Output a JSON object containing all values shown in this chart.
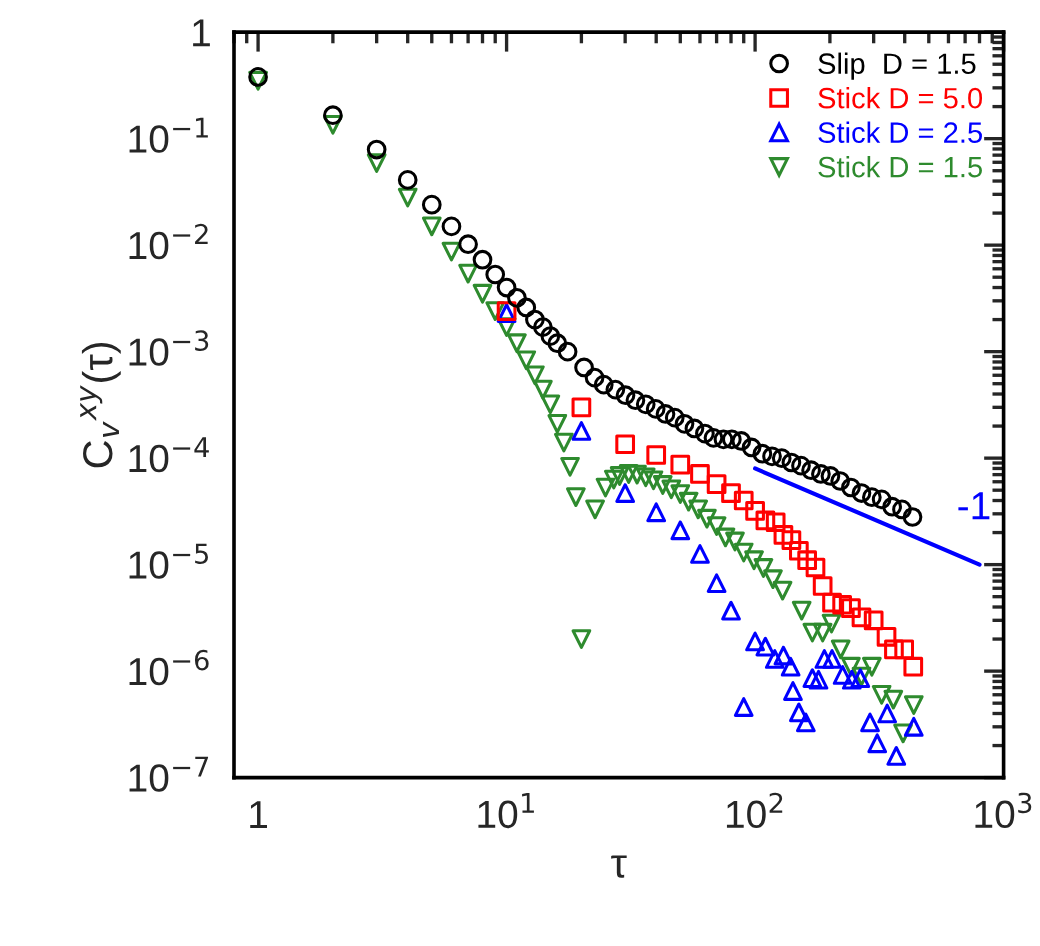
{
  "chart_data": {
    "type": "scatter",
    "xlabel": "τ",
    "ylabel": "C$_{v}$$^{xy}$(τ)",
    "log": "xy",
    "xlim": [
      0.8,
      1000
    ],
    "ylim": [
      1e-07,
      1
    ],
    "xticks": [
      {
        "value": 1,
        "label": "1"
      },
      {
        "value": 10,
        "label": "10$^{1}$"
      },
      {
        "value": 100,
        "label": "10$^{2}$"
      },
      {
        "value": 1000,
        "label": "10$^{3}$"
      }
    ],
    "yticks": [
      {
        "value": 1e-07,
        "label": "10$^{−7}$"
      },
      {
        "value": 1e-06,
        "label": "10$^{−6}$"
      },
      {
        "value": 1e-05,
        "label": "10$^{−5}$"
      },
      {
        "value": 0.0001,
        "label": "10$^{−4}$"
      },
      {
        "value": 0.001,
        "label": "10$^{−3}$"
      },
      {
        "value": 0.01,
        "label": "10$^{−2}$"
      },
      {
        "value": 0.1,
        "label": "10$^{−1}$"
      },
      {
        "value": 1,
        "label": "1"
      }
    ],
    "grid": false,
    "legend": "top right",
    "annotations": [
      "-1"
    ],
    "series": [
      {
        "name": "Slip  D = 1.5",
        "color": "#000000",
        "marker": "circle",
        "x": [
          1,
          2,
          3,
          4,
          5,
          6,
          7,
          8,
          9,
          10,
          11,
          12,
          13,
          14,
          15,
          16,
          17.6,
          20.5,
          22.6,
          24.6,
          27.4,
          30.1,
          33,
          36.3,
          39.8,
          43.6,
          47.5,
          52,
          57,
          62.8,
          68,
          74.6,
          80.6,
          88,
          96.8,
          107,
          117,
          128,
          140,
          153,
          168,
          184,
          201,
          220,
          243,
          268,
          295,
          323,
          356,
          390,
          430
        ],
        "values": [
          0.38,
          0.166,
          0.079,
          0.041,
          0.024,
          0.015,
          0.0102,
          0.0073,
          0.0053,
          0.004,
          0.0032,
          0.0026,
          0.002,
          0.0017,
          0.0014,
          0.0012,
          0.001,
          0.00071,
          0.00057,
          0.00049,
          0.00044,
          0.00039,
          0.00035,
          0.00032,
          0.00029,
          0.00026,
          0.00024,
          0.00021,
          0.00019,
          0.00017,
          0.000155,
          0.00015,
          0.00015,
          0.000145,
          0.000126,
          0.00011,
          0.000104,
          0.0001,
          9.1e-05,
          8.5e-05,
          7.7e-05,
          7.1e-05,
          6.8e-05,
          6.1e-05,
          5.3e-05,
          4.7e-05,
          4.3e-05,
          4.1e-05,
          3.5e-05,
          3.3e-05,
          2.8e-05
        ]
      },
      {
        "name": "Stick D = 5.0",
        "color": "#ff0000",
        "marker": "square",
        "x": [
          10,
          20,
          30,
          40,
          50,
          60,
          70,
          80,
          90,
          100,
          110,
          121,
          130,
          140,
          150,
          162,
          175,
          187,
          204,
          224,
          243,
          268,
          300,
          338,
          362,
          398,
          433
        ],
        "values": [
          0.0024,
          0.0003,
          0.000135,
          0.000107,
          8.7e-05,
          7.1e-05,
          5.7e-05,
          4.7e-05,
          4e-05,
          3.2e-05,
          2.6e-05,
          2.5e-05,
          1.9e-05,
          1.7e-05,
          1.35e-05,
          1.1e-05,
          9.4e-06,
          6.3e-06,
          4.4e-06,
          4.2e-06,
          3.9e-06,
          3.2e-06,
          3e-06,
          2.1e-06,
          1.6e-06,
          1.6e-06,
          1.1e-06
        ]
      },
      {
        "name": "Stick D = 2.5",
        "color": "#0000ff",
        "marker": "triangle",
        "x": [
          10,
          20,
          30,
          40,
          50,
          60,
          70,
          80,
          90,
          100,
          110,
          120,
          130,
          139,
          142,
          150,
          160,
          170,
          180,
          190,
          204,
          225,
          245,
          265,
          290,
          310,
          340,
          370,
          435
        ],
        "values": [
          0.0023,
          0.00018,
          4.7e-05,
          3.1e-05,
          2.1e-05,
          1.26e-05,
          6.7e-06,
          3.7e-06,
          4.6e-07,
          1.9e-06,
          1.7e-06,
          1.3e-06,
          1.4e-06,
          1.1e-06,
          6.5e-07,
          4.1e-07,
          3.3e-07,
          8.6e-07,
          8.3e-07,
          1.3e-06,
          1.3e-06,
          9.2e-07,
          8.3e-07,
          8.6e-07,
          3.3e-07,
          2.1e-07,
          4e-07,
          1.6e-07,
          3e-07
        ]
      },
      {
        "name": "Stick D = 1.5",
        "color": "#2e8b2e",
        "marker": "triangle_down",
        "x": [
          1,
          2,
          3,
          4,
          5,
          6,
          7,
          8,
          9,
          10,
          11,
          12,
          13,
          14,
          15,
          16,
          17,
          18,
          19,
          20,
          22.7,
          25,
          27,
          28.5,
          31,
          33.5,
          36.3,
          39,
          42.5,
          46,
          50,
          54,
          59,
          64,
          70,
          76,
          83,
          90,
          99,
          108,
          118,
          129,
          154,
          170,
          187,
          203,
          221,
          243,
          268,
          295,
          323,
          360,
          394,
          435
        ],
        "values": [
          0.35,
          0.135,
          0.059,
          0.028,
          0.015,
          0.0087,
          0.0054,
          0.0035,
          0.0024,
          0.0017,
          0.0012,
          0.00083,
          0.0006,
          0.00044,
          0.00032,
          0.00021,
          0.00014,
          8.3e-05,
          4.3e-05,
          2e-06,
          3.3e-05,
          5.3e-05,
          6.3e-05,
          6.8e-05,
          7.1e-05,
          7e-05,
          6.6e-05,
          6.2e-05,
          5.6e-05,
          5.1e-05,
          4.6e-05,
          3.9e-05,
          3.3e-05,
          2.7e-05,
          2.3e-05,
          1.8e-05,
          1.65e-05,
          1.3e-05,
          1.1e-05,
          9.3e-06,
          7.3e-06,
          5.7e-06,
          3.7e-06,
          2.3e-06,
          2.3e-06,
          2.8e-06,
          1.6e-06,
          1.1e-06,
          8.9e-07,
          1.1e-06,
          6e-07,
          5.4e-07,
          2.6e-07,
          4.8e-07
        ]
      },
      {
        "type": "line",
        "color": "#0000ff",
        "x": [
          100,
          800
        ],
        "values": [
          8e-05,
          1e-05
        ]
      }
    ]
  }
}
